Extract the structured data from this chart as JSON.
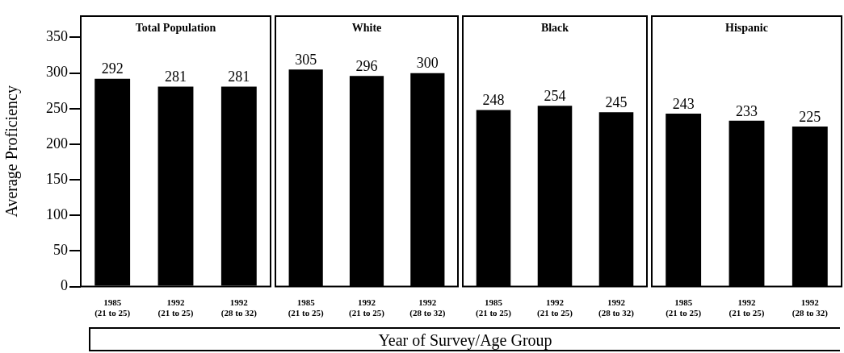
{
  "chart_data": [
    {
      "type": "bar",
      "title": "Total Population",
      "ylabel": "Average Proficiency",
      "categories": [
        "1985\n(21 to 25)",
        "1992\n(21 to 25)",
        "1992\n(28 to 32)"
      ],
      "values": [
        292,
        281,
        281
      ],
      "color": "#000000",
      "data_labels": true,
      "ylim": [
        0,
        380
      ],
      "yticks": [
        0,
        50,
        100,
        150,
        200,
        250,
        300,
        350
      ],
      "grid": false,
      "legend": false
    },
    {
      "type": "bar",
      "title": "White",
      "categories": [
        "1985\n(21 to 25)",
        "1992\n(21 to 25)",
        "1992\n(28 to 32)"
      ],
      "values": [
        305,
        296,
        300
      ],
      "color": "#000000",
      "data_labels": true,
      "ylim": [
        0,
        380
      ],
      "yticks": [
        0,
        50,
        100,
        150,
        200,
        250,
        300,
        350
      ],
      "grid": false,
      "legend": false,
      "tick_labels": "x"
    },
    {
      "type": "bar",
      "title": "Black",
      "categories": [
        "1985\n(21 to 25)",
        "1992\n(21 to 25)",
        "1992\n(28 to 32)"
      ],
      "values": [
        248,
        254,
        245
      ],
      "color": "#000000",
      "data_labels": true,
      "ylim": [
        0,
        380
      ],
      "yticks": [
        0,
        50,
        100,
        150,
        200,
        250,
        300,
        350
      ],
      "grid": false,
      "legend": false,
      "tick_labels": "x"
    },
    {
      "type": "bar",
      "title": "Hispanic",
      "categories": [
        "1985\n(21 to 25)",
        "1992\n(21 to 25)",
        "1992\n(28 to 32)"
      ],
      "values": [
        243,
        233,
        225
      ],
      "color": "#000000",
      "data_labels": true,
      "ylim": [
        0,
        380
      ],
      "yticks": [
        0,
        50,
        100,
        150,
        200,
        250,
        300,
        350
      ],
      "grid": false,
      "legend": false,
      "tick_labels": "x"
    },
    {
      "type": "other",
      "title": "Year of Survey/Age Group"
    }
  ]
}
